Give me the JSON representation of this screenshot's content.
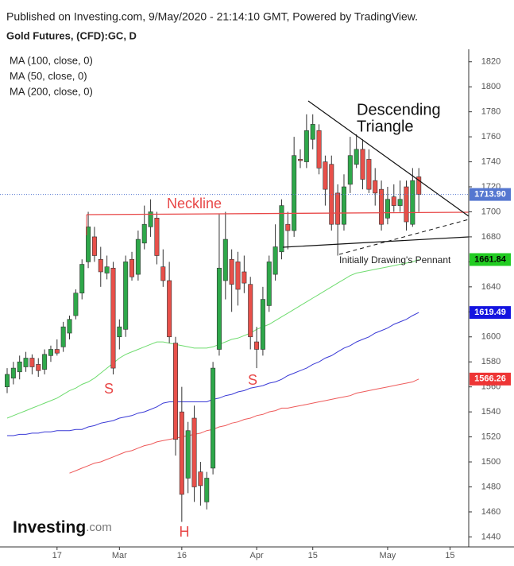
{
  "chart_data": {
    "type": "candlestick",
    "header": "Published on Investing.com, 9/May/2020 - 21:14:10 GMT, Powered by TradingView.",
    "title": "Gold Futures, (CFD):GC, D",
    "logo": {
      "name": "Investing",
      "suffix": ".com"
    },
    "categories": [
      null,
      null,
      null,
      null,
      null,
      null,
      null,
      null,
      "17",
      null,
      null,
      null,
      null,
      null,
      null,
      null,
      null,
      null,
      "Mar",
      null,
      null,
      null,
      null,
      null,
      null,
      null,
      null,
      null,
      "16",
      null,
      null,
      null,
      null,
      null,
      null,
      null,
      null,
      null,
      null,
      null,
      "Apr",
      null,
      null,
      null,
      null,
      null,
      null,
      null,
      null,
      "15",
      null,
      null,
      null,
      null,
      null,
      null,
      null,
      null,
      null,
      null,
      null,
      "May",
      null,
      null,
      null,
      null,
      null,
      null,
      null,
      null,
      null,
      "15",
      null,
      null,
      null
    ],
    "open": [
      1560,
      1567,
      1572,
      1576,
      1583,
      1578,
      1574,
      1585,
      1590,
      1592,
      1603,
      1617,
      1635,
      1660,
      1680,
      1662,
      1651,
      1655,
      1600,
      1606,
      1662,
      1650,
      1675,
      1688,
      1695,
      1656,
      1645,
      1595,
      1540,
      1487,
      1535,
      1492,
      1468,
      1495,
      1590,
      1645,
      1662,
      1660,
      1652,
      1642,
      1596,
      1590,
      1625,
      1650,
      1668,
      1690,
      1685,
      1742,
      1740,
      1758,
      1765,
      1740,
      1738,
      1715,
      1690,
      1722,
      1738,
      1750,
      1742,
      1725,
      1718,
      1695,
      1712,
      1705,
      1720,
      1690,
      1728,
      null,
      null,
      null,
      null,
      null,
      null,
      null,
      null
    ],
    "high": [
      1575,
      1580,
      1585,
      1588,
      1586,
      1583,
      1590,
      1593,
      1598,
      1612,
      1617,
      1638,
      1662,
      1700,
      1688,
      1672,
      1665,
      1660,
      1614,
      1665,
      1668,
      1685,
      1705,
      1710,
      1700,
      1670,
      1660,
      1600,
      1560,
      1532,
      1545,
      1500,
      1492,
      1580,
      1698,
      1700,
      1670,
      1668,
      1665,
      1648,
      1608,
      1640,
      1665,
      1690,
      1710,
      1700,
      1760,
      1750,
      1778,
      1778,
      1770,
      1745,
      1745,
      1722,
      1730,
      1760,
      1762,
      1758,
      1750,
      1735,
      1725,
      1720,
      1722,
      1725,
      1725,
      1735,
      1735,
      null,
      null,
      null,
      null,
      null,
      null,
      null,
      null
    ],
    "low": [
      1555,
      1562,
      1566,
      1572,
      1570,
      1568,
      1570,
      1580,
      1585,
      1588,
      1598,
      1614,
      1630,
      1655,
      1660,
      1640,
      1646,
      1570,
      1590,
      1600,
      1645,
      1645,
      1670,
      1680,
      1658,
      1640,
      1595,
      1505,
      1452,
      1475,
      1468,
      1465,
      1462,
      1490,
      1585,
      1630,
      1620,
      1625,
      1635,
      1590,
      1575,
      1585,
      1620,
      1645,
      1662,
      1670,
      1680,
      1735,
      1735,
      1750,
      1730,
      1705,
      1685,
      1665,
      1685,
      1715,
      1735,
      1718,
      1715,
      1705,
      1685,
      1690,
      1700,
      1700,
      1685,
      1688,
      1700,
      null,
      null,
      null,
      null,
      null,
      null,
      null,
      null
    ],
    "close": [
      1570,
      1575,
      1580,
      1583,
      1576,
      1573,
      1586,
      1590,
      1587,
      1608,
      1614,
      1635,
      1658,
      1688,
      1665,
      1652,
      1656,
      1575,
      1608,
      1660,
      1648,
      1678,
      1690,
      1700,
      1665,
      1645,
      1600,
      1518,
      1474,
      1525,
      1480,
      1481,
      1487,
      1575,
      1655,
      1678,
      1642,
      1638,
      1643,
      1600,
      1590,
      1630,
      1660,
      1672,
      1705,
      1685,
      1745,
      1741,
      1765,
      1770,
      1735,
      1718,
      1690,
      1690,
      1720,
      1745,
      1750,
      1726,
      1718,
      1715,
      1690,
      1710,
      1705,
      1710,
      1692,
      1725,
      1713.9,
      null,
      null,
      null,
      null,
      null,
      null,
      null,
      null
    ],
    "up_color": "#2ea84a",
    "down_color": "#e8504a",
    "series": [
      {
        "name": "MA (100, close, 0)",
        "color": "#3a3ad6",
        "values": [
          1521,
          1521,
          1522,
          1522,
          1523,
          1523,
          1524,
          1524,
          1525,
          1525,
          1525,
          1526,
          1526,
          1528,
          1529,
          1531,
          1532,
          1533,
          1535,
          1536,
          1537,
          1539,
          1540,
          1542,
          1544,
          1547,
          1548,
          1548,
          1548,
          1548,
          1548,
          1548,
          1548,
          1550,
          1551,
          1553,
          1554,
          1556,
          1557,
          1559,
          1560,
          1561,
          1563,
          1564,
          1566,
          1569,
          1571,
          1573,
          1575,
          1578,
          1580,
          1583,
          1585,
          1588,
          1591,
          1593,
          1596,
          1598,
          1600,
          1603,
          1605,
          1607,
          1610,
          1612,
          1614,
          1617,
          1619.49,
          null,
          null,
          null,
          null,
          null,
          null,
          null,
          null
        ]
      },
      {
        "name": "MA (50, close, 0)",
        "color": "#6fdc6f",
        "values": [
          1535,
          1537,
          1539,
          1541,
          1543,
          1545,
          1547,
          1549,
          1551,
          1554,
          1557,
          1559,
          1562,
          1564,
          1567,
          1571,
          1575,
          1579,
          1583,
          1586,
          1588,
          1590,
          1592,
          1594,
          1596,
          1596,
          1595,
          1594,
          1593,
          1592,
          1591,
          1591,
          1591,
          1592,
          1594,
          1596,
          1598,
          1599,
          1601,
          1603,
          1606,
          1608,
          1610,
          1613,
          1616,
          1619,
          1622,
          1625,
          1628,
          1631,
          1634,
          1637,
          1640,
          1643,
          1646,
          1649,
          1651,
          1652,
          1653,
          1654,
          1655,
          1656,
          1657,
          1658,
          1659,
          1660,
          1661.84,
          null,
          null,
          null,
          null,
          null,
          null,
          null,
          null
        ]
      },
      {
        "name": "MA (200, close, 0)",
        "color": "#ee5a5a",
        "values": [
          null,
          null,
          null,
          null,
          null,
          null,
          null,
          null,
          null,
          null,
          1491,
          1493,
          1495,
          1497,
          1499,
          1500,
          1502,
          1504,
          1506,
          1508,
          1509,
          1511,
          1513,
          1514,
          1516,
          1517,
          1518,
          1519,
          1520,
          1521,
          1522,
          1523,
          1525,
          1526,
          1528,
          1529,
          1531,
          1532,
          1534,
          1535,
          1537,
          1538,
          1540,
          1541,
          1543,
          1543,
          1544,
          1545,
          1546,
          1547,
          1548,
          1549,
          1550,
          1551,
          1552,
          1553,
          1555,
          1556,
          1557,
          1558,
          1559,
          1560,
          1561,
          1562,
          1563,
          1564,
          1566.26,
          null,
          null,
          null,
          null,
          null,
          null,
          null,
          null
        ]
      }
    ],
    "price_markers": [
      {
        "value": 1713.9,
        "label": "1713.90",
        "color": "#5577d0",
        "text_color": "#ffffff",
        "line": true
      },
      {
        "value": 1661.84,
        "label": "1661.84",
        "color": "#22cc22",
        "text_color": "#000000",
        "line": false
      },
      {
        "value": 1619.49,
        "label": "1619.49",
        "color": "#1414e0",
        "text_color": "#ffffff",
        "line": false
      },
      {
        "value": 1566.26,
        "label": "1566.26",
        "color": "#ee3535",
        "text_color": "#ffffff",
        "line": false
      }
    ],
    "annotations": [
      "Neckline",
      "Descending",
      "Triangle",
      "Initially Drawing's Pennant",
      "S",
      "H",
      "S"
    ],
    "ylim": [
      1432,
      1830
    ],
    "yticks": [
      1440,
      1460,
      1480,
      1500,
      1520,
      1540,
      1560,
      1580,
      1600,
      1620,
      1640,
      1660,
      1680,
      1700,
      1720,
      1740,
      1760,
      1780,
      1800,
      1820
    ]
  }
}
